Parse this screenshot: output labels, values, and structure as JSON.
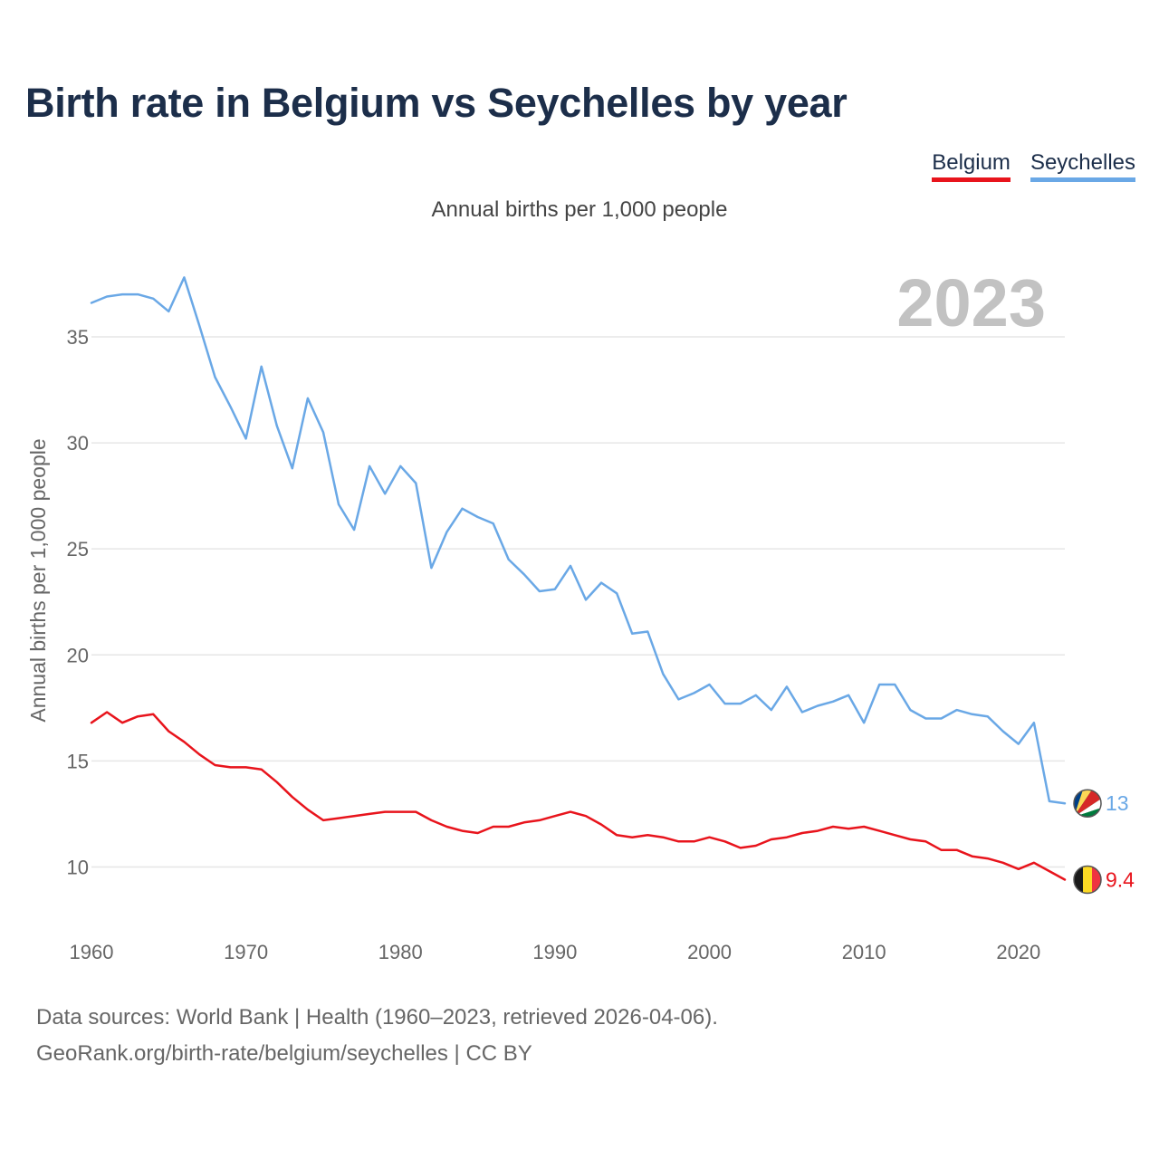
{
  "header": {
    "title": "Birth rate in Belgium vs Seychelles by year",
    "subtitle": "Annual births per 1,000 people"
  },
  "legend": {
    "items": [
      "Belgium",
      "Seychelles"
    ]
  },
  "footer": {
    "line1": "Data sources: World Bank | Health (1960–2023, retrieved 2026-04-06).",
    "line2": "GeoRank.org/birth-rate/belgium/seychelles | CC BY"
  },
  "chart_data": {
    "type": "line",
    "title": "Birth rate in Belgium vs Seychelles by year",
    "subtitle": "Annual births per 1,000 people",
    "xlabel": "",
    "ylabel": "Annual births per 1,000 people",
    "year_label": "2023",
    "xlim": [
      1960,
      2023
    ],
    "ylim": [
      7.5,
      38.5
    ],
    "x_ticks": [
      1960,
      1970,
      1980,
      1990,
      2000,
      2010,
      2020
    ],
    "y_ticks": [
      10,
      15,
      20,
      25,
      30,
      35
    ],
    "grid": true,
    "legend_position": "top-right",
    "x": [
      1960,
      1961,
      1962,
      1963,
      1964,
      1965,
      1966,
      1967,
      1968,
      1969,
      1970,
      1971,
      1972,
      1973,
      1974,
      1975,
      1976,
      1977,
      1978,
      1979,
      1980,
      1981,
      1982,
      1983,
      1984,
      1985,
      1986,
      1987,
      1988,
      1989,
      1990,
      1991,
      1992,
      1993,
      1994,
      1995,
      1996,
      1997,
      1998,
      1999,
      2000,
      2001,
      2002,
      2003,
      2004,
      2005,
      2006,
      2007,
      2008,
      2009,
      2010,
      2011,
      2012,
      2013,
      2014,
      2015,
      2016,
      2017,
      2018,
      2019,
      2020,
      2021,
      2022,
      2023
    ],
    "series": [
      {
        "name": "Belgium",
        "color": "#e8141c",
        "end_label": "9.4",
        "values": [
          16.8,
          17.3,
          16.8,
          17.1,
          17.2,
          16.4,
          15.9,
          15.3,
          14.8,
          14.7,
          14.7,
          14.6,
          14.0,
          13.3,
          12.7,
          12.2,
          12.3,
          12.4,
          12.5,
          12.6,
          12.6,
          12.6,
          12.2,
          11.9,
          11.7,
          11.6,
          11.9,
          11.9,
          12.1,
          12.2,
          12.4,
          12.6,
          12.4,
          12.0,
          11.5,
          11.4,
          11.5,
          11.4,
          11.2,
          11.2,
          11.4,
          11.2,
          10.9,
          11.0,
          11.3,
          11.4,
          11.6,
          11.7,
          11.9,
          11.8,
          11.9,
          11.7,
          11.5,
          11.3,
          11.2,
          10.8,
          10.8,
          10.5,
          10.4,
          10.2,
          9.9,
          10.2,
          9.8,
          9.4
        ]
      },
      {
        "name": "Seychelles",
        "color": "#6aa8e6",
        "end_label": "13",
        "values": [
          36.6,
          36.9,
          37.0,
          37.0,
          36.8,
          36.2,
          37.8,
          35.5,
          33.1,
          31.7,
          30.2,
          33.6,
          30.8,
          28.8,
          32.1,
          30.5,
          27.1,
          25.9,
          28.9,
          27.6,
          28.9,
          28.1,
          24.1,
          25.8,
          26.9,
          26.5,
          26.2,
          24.5,
          23.8,
          23.0,
          23.1,
          24.2,
          22.6,
          23.4,
          22.9,
          21.0,
          21.1,
          19.1,
          17.9,
          18.2,
          18.6,
          17.7,
          17.7,
          18.1,
          17.4,
          18.5,
          17.3,
          17.6,
          17.8,
          18.1,
          16.8,
          18.6,
          18.6,
          17.4,
          17.0,
          17.0,
          17.4,
          17.2,
          17.1,
          16.4,
          15.8,
          16.8,
          13.1,
          13.0
        ]
      }
    ]
  }
}
